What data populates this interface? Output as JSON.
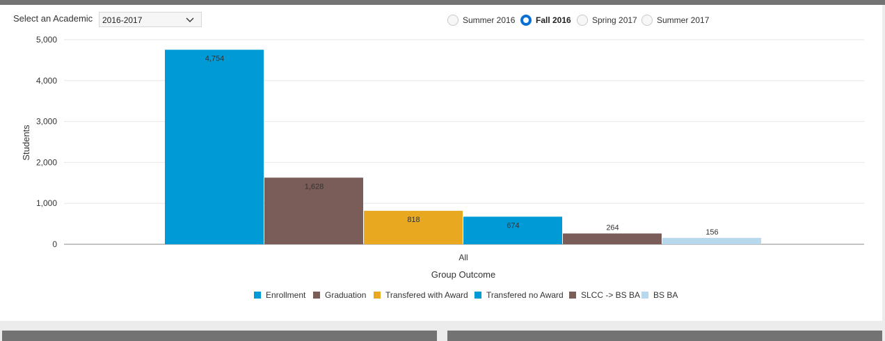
{
  "filter": {
    "label": "Select an Academic",
    "selected": "2016-2017"
  },
  "terms": [
    {
      "label": "Summer 2016",
      "checked": false
    },
    {
      "label": "Fall 2016",
      "checked": true
    },
    {
      "label": "Spring 2017",
      "checked": false
    },
    {
      "label": "Summer 2017",
      "checked": false
    }
  ],
  "icons": {
    "dropdown": "chevron-down-icon"
  },
  "chart_data": {
    "type": "bar",
    "categories": [
      "All"
    ],
    "series": [
      {
        "name": "Enrollment",
        "values": [
          4754
        ],
        "color": "#009ad6"
      },
      {
        "name": "Graduation",
        "values": [
          1628
        ],
        "color": "#7a5c58"
      },
      {
        "name": "Transfered with Award",
        "values": [
          818
        ],
        "color": "#e8a820"
      },
      {
        "name": "Transfered no Award",
        "values": [
          674
        ],
        "color": "#009ad6"
      },
      {
        "name": "SLCC -> BS BA",
        "values": [
          264
        ],
        "color": "#7a5c58"
      },
      {
        "name": "BS BA",
        "values": [
          156
        ],
        "color": "#b8d8ee"
      }
    ],
    "data_labels": [
      "4,754",
      "1,628",
      "818",
      "674",
      "264",
      "156"
    ],
    "yticks": [
      0,
      1000,
      2000,
      3000,
      4000,
      5000
    ],
    "ytick_labels": [
      "0",
      "1,000",
      "2,000",
      "3,000",
      "4,000",
      "5,000"
    ],
    "ylim": [
      0,
      5000
    ],
    "xlabel": "Group Outcome",
    "ylabel": "Students",
    "title": "",
    "grid": true,
    "legend_position": "bottom"
  }
}
